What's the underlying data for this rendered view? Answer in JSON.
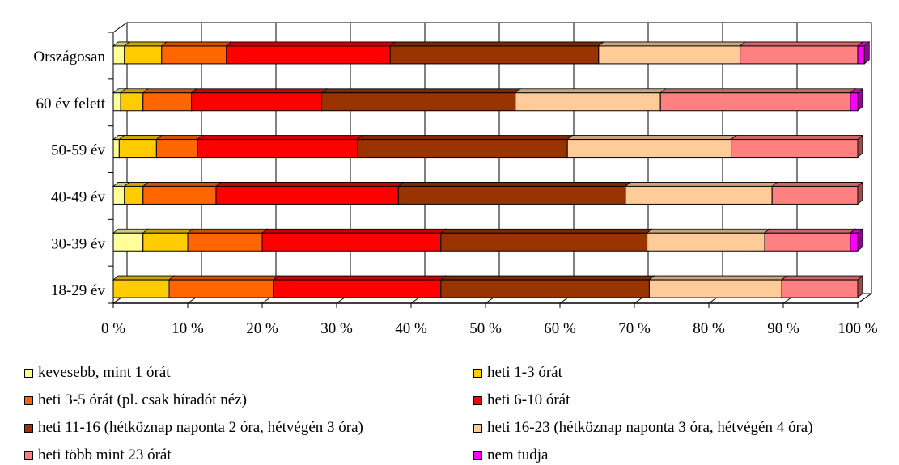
{
  "chart_data": {
    "type": "bar",
    "orientation": "horizontal",
    "stacked": "percent",
    "categories": [
      "Országosan",
      "60 év felett",
      "50-59 év",
      "40-49 év",
      "30-39 év",
      "18-29 év"
    ],
    "x_tick_labels": [
      "0 %",
      "10 %",
      "20 %",
      "30 %",
      "40 %",
      "50 %",
      "60 %",
      "70 %",
      "80 %",
      "90 %",
      "100 %"
    ],
    "xlim": [
      0,
      100
    ],
    "legend_position": "bottom",
    "series": [
      {
        "name": "kevesebb, mint 1 órát",
        "color": "#ffff99",
        "values": [
          1.5,
          1.0,
          0.8,
          1.5,
          4.0,
          0.0
        ]
      },
      {
        "name": "heti 1-3 órát",
        "color": "#ffcc00",
        "values": [
          5.0,
          3.0,
          5.0,
          2.5,
          6.0,
          7.5
        ]
      },
      {
        "name": "heti 3-5 órát (pl. csak híradót néz)",
        "color": "#ff6600",
        "values": [
          8.7,
          6.5,
          5.5,
          9.8,
          10.0,
          14.0
        ]
      },
      {
        "name": "heti 6-10 órát",
        "color": "#ff0000",
        "values": [
          22.0,
          17.5,
          21.5,
          24.5,
          24.0,
          22.5
        ]
      },
      {
        "name": "heti 11-16 (hétköznap naponta 2 óra, hétvégén 3 óra)",
        "color": "#993300",
        "values": [
          28.0,
          26.0,
          28.2,
          30.5,
          27.7,
          28.0
        ]
      },
      {
        "name": "heti 16-23 (hétköznap naponta 3 óra, hétvégén 4 óra)",
        "color": "#ffcc99",
        "values": [
          19.0,
          19.5,
          22.0,
          19.7,
          15.8,
          17.8
        ]
      },
      {
        "name": "heti több mint 23 órát",
        "color": "#ff8080",
        "values": [
          15.8,
          25.5,
          17.0,
          11.5,
          11.5,
          10.2
        ]
      },
      {
        "name": "nem tudja",
        "color": "#ff00ff",
        "values": [
          0.9,
          1.0,
          0.0,
          0.0,
          1.0,
          0.0
        ]
      }
    ]
  }
}
